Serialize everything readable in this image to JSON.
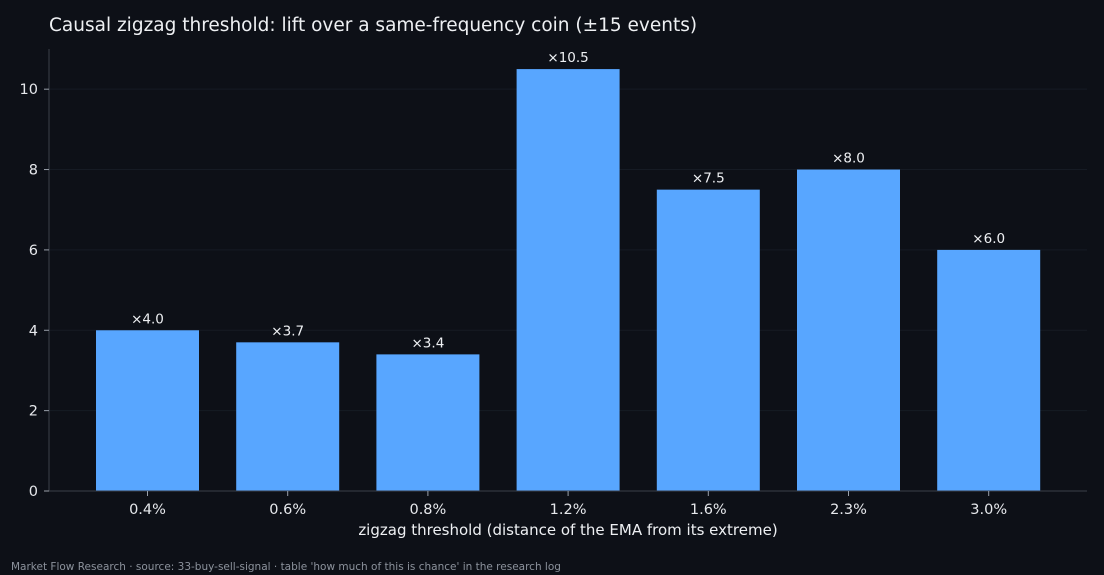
{
  "title": "Causal zigzag threshold: lift over a same-frequency coin (±15 events)",
  "footer": "Market Flow Research · source: 33-buy-sell-signal · table 'how much of this is chance' in the research log",
  "chart_data": {
    "type": "bar",
    "title": "Causal zigzag threshold: lift over a same-frequency coin (±15 events)",
    "xlabel": "zigzag threshold (distance of the EMA from its extreme)",
    "ylabel": "",
    "categories": [
      "0.4%",
      "0.6%",
      "0.8%",
      "1.2%",
      "1.6%",
      "2.3%",
      "3.0%"
    ],
    "values": [
      4.0,
      3.7,
      3.4,
      10.5,
      7.5,
      8.0,
      6.0
    ],
    "data_labels": [
      "×4.0",
      "×3.7",
      "×3.4",
      "×10.5",
      "×7.5",
      "×8.0",
      "×6.0"
    ],
    "ylim": [
      0,
      11
    ],
    "yticks": [
      0,
      2,
      4,
      6,
      8,
      10
    ],
    "grid": "horizontal",
    "legend": "none",
    "bar_color": "#58a6ff",
    "background_color": "#0d1017",
    "grid_color": "#161b24",
    "axis_color": "#3a3f49"
  }
}
